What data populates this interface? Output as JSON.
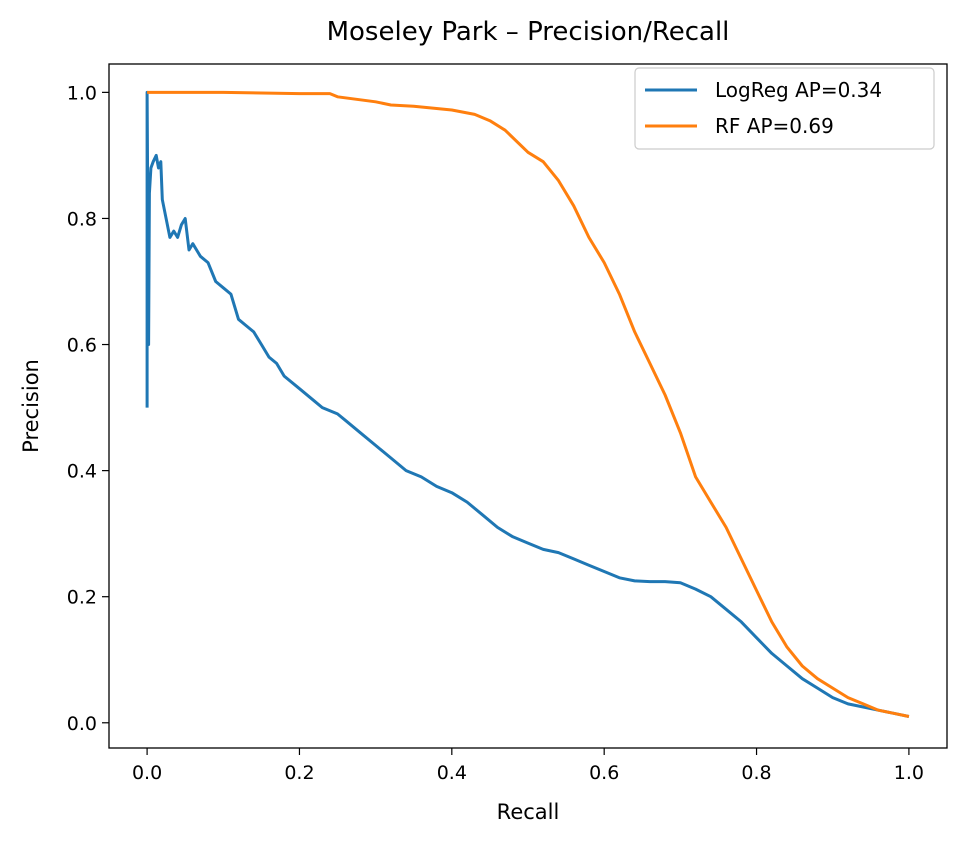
{
  "chart_data": {
    "type": "line",
    "title": "Moseley Park – Precision/Recall",
    "xlabel": "Recall",
    "ylabel": "Precision",
    "xlim": [
      -0.05,
      1.05
    ],
    "ylim": [
      -0.04,
      1.045
    ],
    "xticks": [
      "0.0",
      "0.2",
      "0.4",
      "0.6",
      "0.8",
      "1.0"
    ],
    "yticks": [
      "0.0",
      "0.2",
      "0.4",
      "0.6",
      "0.8",
      "1.0"
    ],
    "grid": false,
    "legend_position": "top-right",
    "series": [
      {
        "name": "LogReg AP=0.34",
        "color": "#1f77b4",
        "x": [
          0.0,
          0.0,
          0.002,
          0.003,
          0.005,
          0.008,
          0.012,
          0.015,
          0.018,
          0.02,
          0.025,
          0.03,
          0.035,
          0.04,
          0.045,
          0.05,
          0.055,
          0.06,
          0.065,
          0.07,
          0.08,
          0.09,
          0.1,
          0.11,
          0.12,
          0.13,
          0.14,
          0.15,
          0.16,
          0.17,
          0.18,
          0.2,
          0.22,
          0.23,
          0.25,
          0.26,
          0.28,
          0.3,
          0.32,
          0.34,
          0.36,
          0.38,
          0.4,
          0.42,
          0.44,
          0.46,
          0.48,
          0.5,
          0.52,
          0.54,
          0.56,
          0.58,
          0.6,
          0.62,
          0.64,
          0.66,
          0.68,
          0.7,
          0.72,
          0.74,
          0.76,
          0.78,
          0.8,
          0.82,
          0.84,
          0.86,
          0.88,
          0.9,
          0.92,
          0.94,
          0.96,
          0.98,
          1.0
        ],
        "y": [
          0.5,
          1.0,
          0.6,
          0.84,
          0.88,
          0.89,
          0.9,
          0.88,
          0.89,
          0.83,
          0.8,
          0.77,
          0.78,
          0.77,
          0.79,
          0.8,
          0.75,
          0.76,
          0.75,
          0.74,
          0.73,
          0.7,
          0.69,
          0.68,
          0.64,
          0.63,
          0.62,
          0.6,
          0.58,
          0.57,
          0.55,
          0.53,
          0.51,
          0.5,
          0.49,
          0.48,
          0.46,
          0.44,
          0.42,
          0.4,
          0.39,
          0.375,
          0.365,
          0.35,
          0.33,
          0.31,
          0.295,
          0.285,
          0.275,
          0.27,
          0.26,
          0.25,
          0.24,
          0.23,
          0.225,
          0.224,
          0.224,
          0.222,
          0.212,
          0.2,
          0.18,
          0.16,
          0.135,
          0.11,
          0.09,
          0.07,
          0.055,
          0.04,
          0.03,
          0.025,
          0.02,
          0.015,
          0.01
        ]
      },
      {
        "name": "RF AP=0.69",
        "color": "#ff7f0e",
        "x": [
          0.0,
          0.05,
          0.1,
          0.15,
          0.2,
          0.24,
          0.25,
          0.3,
          0.32,
          0.35,
          0.4,
          0.43,
          0.45,
          0.47,
          0.5,
          0.52,
          0.54,
          0.56,
          0.58,
          0.6,
          0.62,
          0.64,
          0.66,
          0.68,
          0.7,
          0.72,
          0.74,
          0.76,
          0.78,
          0.8,
          0.82,
          0.84,
          0.86,
          0.88,
          0.9,
          0.92,
          0.94,
          0.96,
          0.98,
          1.0
        ],
        "y": [
          1.0,
          1.0,
          1.0,
          0.999,
          0.998,
          0.998,
          0.993,
          0.985,
          0.98,
          0.978,
          0.972,
          0.965,
          0.955,
          0.94,
          0.905,
          0.89,
          0.86,
          0.82,
          0.77,
          0.73,
          0.68,
          0.62,
          0.57,
          0.52,
          0.46,
          0.39,
          0.35,
          0.31,
          0.26,
          0.21,
          0.16,
          0.12,
          0.09,
          0.07,
          0.055,
          0.04,
          0.03,
          0.02,
          0.015,
          0.01
        ]
      }
    ]
  }
}
